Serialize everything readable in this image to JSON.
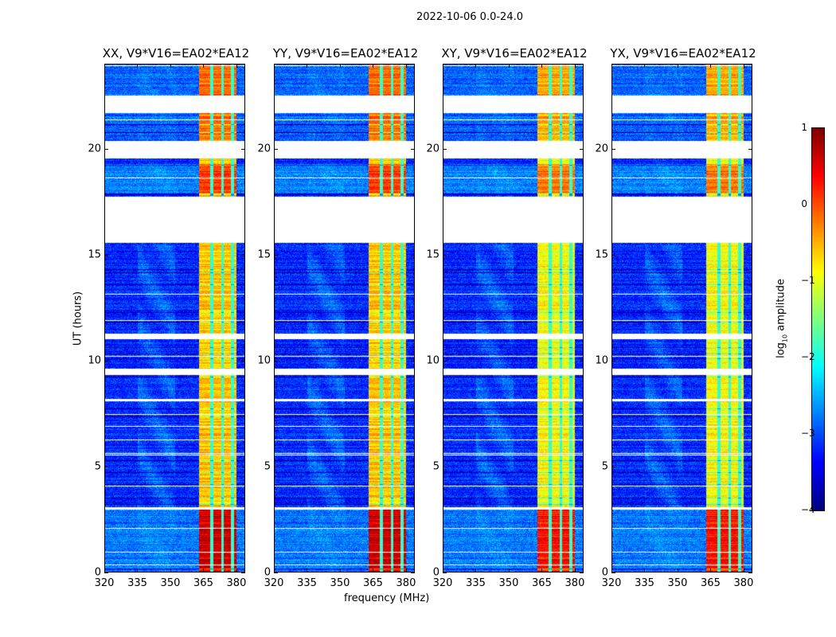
{
  "chart_data": {
    "type": "heatmap",
    "suptitle": "2022-10-06 0.0-24.0",
    "xlabel": "frequency (MHz)",
    "ylabel": "UT (hours)",
    "xlim": [
      320,
      384
    ],
    "ylim": [
      0,
      24
    ],
    "xticks": [
      "320",
      "335",
      "350",
      "365",
      "380"
    ],
    "xtick_values": [
      320,
      335,
      350,
      365,
      380
    ],
    "yticks": [
      "0",
      "5",
      "10",
      "15",
      "20"
    ],
    "ytick_values": [
      0,
      5,
      10,
      15,
      20
    ],
    "panels": [
      {
        "title": "XX, V9*V16=EA02*EA12"
      },
      {
        "title": "YY, V9*V16=EA02*EA12"
      },
      {
        "title": "XY, V9*V16=EA02*EA12"
      },
      {
        "title": "YX, V9*V16=EA02*EA12"
      }
    ],
    "colorbar": {
      "label": "log10 amplitude",
      "label_main": "log",
      "label_sub": "10",
      "label_rest": " amplitude",
      "range": [
        -4,
        1
      ],
      "ticks": [
        "1",
        "0",
        "−1",
        "−2",
        "−3",
        "−4"
      ],
      "tick_values": [
        1,
        0,
        -1,
        -2,
        -3,
        -4
      ],
      "colormap": "jet"
    },
    "flagged_hours": [
      [
        15.55,
        17.75
      ],
      [
        19.55,
        20.37
      ],
      [
        21.7,
        22.5
      ],
      [
        11.03,
        11.3
      ],
      [
        9.34,
        9.64
      ],
      [
        8.1,
        8.2
      ],
      [
        3.0,
        3.1
      ]
    ],
    "rfi_band_mhz": [
      363,
      380
    ],
    "background_log_amplitude": -3.2,
    "rfi_log_amplitude": -0.6
  }
}
